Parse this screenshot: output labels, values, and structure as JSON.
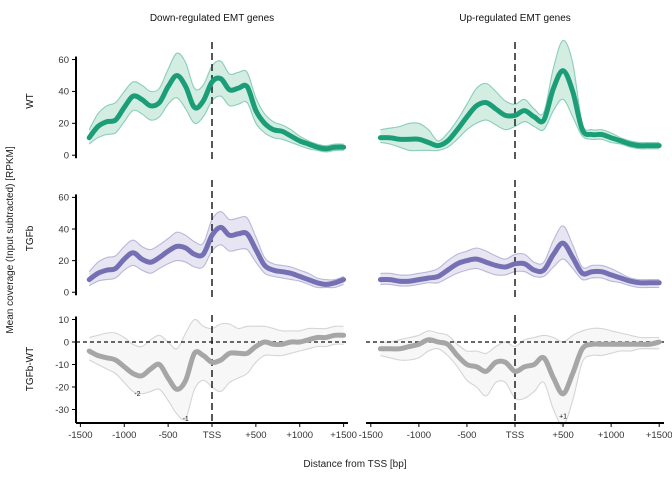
{
  "chart_data": {
    "type": "line",
    "title": "",
    "xlabel": "Distance from TSS [bp]",
    "ylabel": "Mean coverage (Input subtracted) [RPKM]",
    "x_ticks": [
      {
        "value": -1500,
        "label": "-1500"
      },
      {
        "value": -1000,
        "label": "-1000"
      },
      {
        "value": -500,
        "label": "-500"
      },
      {
        "value": 0,
        "label": "TSS"
      },
      {
        "value": 500,
        "label": "+500"
      },
      {
        "value": 1000,
        "label": "+1000"
      },
      {
        "value": 1500,
        "label": "+1500"
      }
    ],
    "xlim": [
      -1550,
      1550
    ],
    "x": [
      -1400,
      -1300,
      -1200,
      -1100,
      -1000,
      -900,
      -800,
      -700,
      -600,
      -500,
      -400,
      -300,
      -200,
      -100,
      0,
      100,
      200,
      300,
      400,
      500,
      600,
      700,
      800,
      900,
      1000,
      1100,
      1200,
      1300,
      1400,
      1500
    ],
    "columns": [
      "Down-regulated EMT genes",
      "Up-regulated EMT genes"
    ],
    "rows": [
      {
        "label": "WT",
        "color": "#1b9e77",
        "band_color": "#a8dcc8",
        "ylim": [
          -3,
          71
        ],
        "y_ticks": [
          0,
          20,
          40,
          60
        ],
        "zero_line": false,
        "panels": [
          {
            "mean": [
              11,
              18,
              21,
              22,
              30,
              37,
              35,
              31,
              33,
              43,
              50,
              43,
              30,
              34,
              46,
              48,
              41,
              42,
              43,
              28,
              20,
              16,
              15,
              12,
              9,
              7,
              5,
              4,
              5,
              5
            ],
            "upper": [
              16,
              26,
              31,
              33,
              40,
              46,
              44,
              40,
              42,
              54,
              64,
              58,
              42,
              44,
              56,
              59,
              51,
              52,
              52,
              36,
              26,
              21,
              19,
              16,
              12,
              9,
              7,
              6,
              7,
              7
            ],
            "lower": [
              7,
              11,
              13,
              14,
              21,
              28,
              26,
              22,
              24,
              32,
              36,
              29,
              20,
              24,
              34,
              37,
              31,
              32,
              33,
              20,
              14,
              11,
              10,
              8,
              6,
              4,
              3,
              2,
              3,
              3
            ]
          },
          {
            "mean": [
              11,
              11,
              10,
              10,
              10,
              8,
              6,
              9,
              16,
              24,
              31,
              33,
              29,
              25,
              25,
              28,
              24,
              22,
              42,
              53,
              40,
              16,
              13,
              13,
              11,
              9,
              7,
              6,
              6,
              6
            ],
            "upper": [
              16,
              17,
              18,
              20,
              20,
              16,
              9,
              14,
              22,
              32,
              42,
              45,
              40,
              34,
              32,
              35,
              29,
              27,
              55,
              72,
              58,
              20,
              16,
              16,
              14,
              11,
              9,
              8,
              8,
              8
            ],
            "lower": [
              8,
              7,
              5,
              3,
              3,
              3,
              3,
              5,
              10,
              16,
              20,
              22,
              19,
              16,
              18,
              21,
              18,
              16,
              28,
              35,
              24,
              12,
              10,
              10,
              8,
              7,
              5,
              4,
              4,
              4
            ]
          }
        ]
      },
      {
        "label": "TGFb",
        "color": "#7570b3",
        "band_color": "#cfcce6",
        "ylim": [
          -3,
          71
        ],
        "y_ticks": [
          0,
          20,
          40,
          60
        ],
        "zero_line": false,
        "panels": [
          {
            "mean": [
              8,
              12,
              14,
              15,
              21,
              25,
              21,
              19,
              22,
              26,
              29,
              28,
              24,
              24,
              36,
              41,
              36,
              37,
              37,
              27,
              17,
              14,
              13,
              12,
              10,
              8,
              6,
              5,
              6,
              8
            ],
            "upper": [
              13,
              19,
              22,
              23,
              29,
              33,
              29,
              27,
              30,
              34,
              38,
              36,
              32,
              31,
              46,
              51,
              46,
              47,
              47,
              35,
              22,
              18,
              17,
              16,
              14,
              12,
              9,
              8,
              8,
              10
            ],
            "lower": [
              4,
              7,
              8,
              9,
              14,
              17,
              14,
              12,
              15,
              18,
              20,
              19,
              16,
              16,
              26,
              30,
              26,
              27,
              27,
              19,
              12,
              10,
              9,
              8,
              7,
              5,
              3,
              3,
              3,
              5
            ]
          },
          {
            "mean": [
              8,
              8,
              7,
              7,
              8,
              9,
              10,
              14,
              18,
              20,
              21,
              19,
              17,
              16,
              18,
              18,
              14,
              14,
              24,
              31,
              22,
              12,
              13,
              13,
              11,
              9,
              7,
              6,
              6,
              6
            ],
            "upper": [
              12,
              12,
              11,
              11,
              12,
              13,
              15,
              20,
              24,
              26,
              28,
              26,
              23,
              21,
              24,
              24,
              19,
              19,
              33,
              42,
              30,
              16,
              17,
              17,
              15,
              12,
              9,
              8,
              8,
              8
            ],
            "lower": [
              5,
              5,
              4,
              4,
              5,
              6,
              6,
              9,
              12,
              14,
              15,
              13,
              11,
              11,
              13,
              13,
              10,
              10,
              16,
              21,
              15,
              8,
              9,
              9,
              7,
              6,
              4,
              3,
              3,
              3
            ]
          }
        ]
      },
      {
        "label": "TGFb-WT",
        "color": "#a6a6a6",
        "band_color": "#efefef",
        "ylim": [
          -36,
          12
        ],
        "y_ticks": [
          -30,
          -20,
          -10,
          0,
          10
        ],
        "zero_line": true,
        "panels": [
          {
            "mean": [
              -4,
              -6,
              -7,
              -8,
              -11,
              -14,
              -15,
              -12,
              -10,
              -16,
              -21,
              -17,
              -5,
              -6,
              -9,
              -8,
              -5,
              -5,
              -5,
              -2,
              0,
              -1,
              -1,
              0,
              0,
              1,
              2,
              2,
              3,
              3
            ],
            "upper": [
              2,
              3,
              4,
              4,
              2,
              -1,
              -2,
              1,
              3,
              0,
              -3,
              4,
              10,
              7,
              6,
              8,
              8,
              6,
              7,
              7,
              7,
              6,
              5,
              5,
              5,
              6,
              6,
              6,
              7,
              7
            ],
            "lower": [
              -8,
              -10,
              -12,
              -14,
              -18,
              -22,
              -23,
              -22,
              -21,
              -26,
              -32,
              -34,
              -21,
              -17,
              -20,
              -22,
              -18,
              -16,
              -14,
              -9,
              -6,
              -6,
              -6,
              -5,
              -4,
              -3,
              -2,
              -2,
              -1,
              -1
            ],
            "annotations": [
              {
                "text": "-2",
                "x": -850,
                "y": -24
              },
              {
                "text": "-1",
                "x": -300,
                "y": -35
              }
            ]
          },
          {
            "mean": [
              -3,
              -3,
              -3,
              -2,
              -1,
              1,
              0,
              -1,
              -6,
              -10,
              -11,
              -13,
              -9,
              -9,
              -13,
              -11,
              -10,
              -7,
              -16,
              -23,
              -14,
              -3,
              -1,
              -1,
              -1,
              -1,
              -1,
              -1,
              -1,
              0
            ],
            "upper": [
              0,
              0,
              1,
              2,
              3,
              5,
              4,
              3,
              -1,
              -4,
              -4,
              -5,
              -2,
              0,
              -2,
              1,
              2,
              3,
              2,
              0,
              3,
              5,
              6,
              6,
              5,
              4,
              3,
              2,
              2,
              2
            ],
            "lower": [
              -6,
              -7,
              -8,
              -8,
              -7,
              -4,
              -3,
              -6,
              -11,
              -17,
              -20,
              -24,
              -18,
              -18,
              -25,
              -25,
              -22,
              -18,
              -30,
              -37,
              -26,
              -9,
              -6,
              -6,
              -5,
              -4,
              -4,
              -3,
              -3,
              -3
            ],
            "annotations": [
              {
                "text": "+1",
                "x": 500,
                "y": -34
              }
            ]
          }
        ]
      }
    ]
  }
}
